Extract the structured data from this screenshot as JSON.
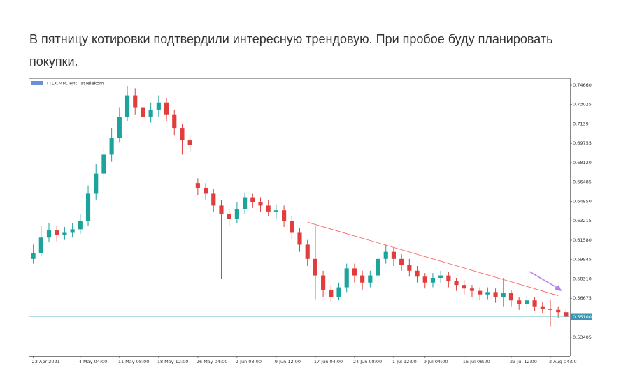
{
  "post": {
    "text": "В пятницу котировки подтвердили интересную трендовую. При пробое буду планировать покупки."
  },
  "chart_data": {
    "type": "candlestick",
    "title": "TTLK.MM, H4: TatTelekom",
    "up_color": "#1ba39c",
    "down_color": "#e23d3d",
    "open": [
      0.6,
      0.605,
      0.618,
      0.624,
      0.62,
      0.622,
      0.625,
      0.632,
      0.655,
      0.672,
      0.688,
      0.702,
      0.72,
      0.738,
      0.728,
      0.72,
      0.726,
      0.732,
      0.722,
      0.71,
      0.7,
      0.664,
      0.66,
      0.655,
      0.645,
      0.638,
      0.634,
      0.642,
      0.652,
      0.648,
      0.645,
      0.64,
      0.641,
      0.632,
      0.622,
      0.612,
      0.6,
      0.586,
      0.574,
      0.568,
      0.576,
      0.592,
      0.586,
      0.58,
      0.586,
      0.6,
      0.606,
      0.6,
      0.595,
      0.59,
      0.585,
      0.58,
      0.584,
      0.586,
      0.581,
      0.578,
      0.575,
      0.573,
      0.57,
      0.572,
      0.568,
      0.571,
      0.565,
      0.562,
      0.565,
      0.56,
      0.558,
      0.557,
      0.555
    ],
    "high": [
      0.612,
      0.628,
      0.63,
      0.628,
      0.627,
      0.63,
      0.638,
      0.662,
      0.68,
      0.695,
      0.71,
      0.728,
      0.746,
      0.744,
      0.733,
      0.732,
      0.738,
      0.736,
      0.726,
      0.714,
      0.704,
      0.668,
      0.664,
      0.659,
      0.65,
      0.642,
      0.648,
      0.656,
      0.655,
      0.652,
      0.65,
      0.646,
      0.645,
      0.636,
      0.626,
      0.616,
      0.628,
      0.59,
      0.578,
      0.58,
      0.596,
      0.596,
      0.59,
      0.59,
      0.604,
      0.612,
      0.61,
      0.604,
      0.6,
      0.594,
      0.588,
      0.588,
      0.59,
      0.589,
      0.584,
      0.582,
      0.578,
      0.576,
      0.576,
      0.575,
      0.584,
      0.574,
      0.568,
      0.569,
      0.568,
      0.564,
      0.566,
      0.56,
      0.558
    ],
    "low": [
      0.596,
      0.602,
      0.614,
      0.615,
      0.616,
      0.618,
      0.621,
      0.628,
      0.65,
      0.668,
      0.682,
      0.698,
      0.716,
      0.722,
      0.714,
      0.715,
      0.72,
      0.716,
      0.704,
      0.688,
      0.69,
      0.654,
      0.65,
      0.64,
      0.583,
      0.628,
      0.63,
      0.638,
      0.643,
      0.64,
      0.636,
      0.634,
      0.627,
      0.617,
      0.606,
      0.594,
      0.566,
      0.568,
      0.564,
      0.565,
      0.572,
      0.58,
      0.574,
      0.576,
      0.582,
      0.596,
      0.594,
      0.59,
      0.585,
      0.58,
      0.575,
      0.576,
      0.58,
      0.576,
      0.573,
      0.57,
      0.568,
      0.565,
      0.566,
      0.563,
      0.56,
      0.56,
      0.557,
      0.558,
      0.556,
      0.554,
      0.543,
      0.55,
      0.548
    ],
    "close": [
      0.605,
      0.618,
      0.624,
      0.62,
      0.622,
      0.625,
      0.632,
      0.655,
      0.672,
      0.688,
      0.702,
      0.72,
      0.738,
      0.728,
      0.72,
      0.726,
      0.732,
      0.722,
      0.71,
      0.7,
      0.696,
      0.66,
      0.655,
      0.645,
      0.638,
      0.634,
      0.642,
      0.652,
      0.648,
      0.645,
      0.64,
      0.641,
      0.632,
      0.622,
      0.612,
      0.6,
      0.586,
      0.574,
      0.568,
      0.576,
      0.592,
      0.586,
      0.58,
      0.586,
      0.6,
      0.606,
      0.6,
      0.595,
      0.59,
      0.585,
      0.58,
      0.584,
      0.586,
      0.581,
      0.578,
      0.575,
      0.573,
      0.57,
      0.572,
      0.568,
      0.571,
      0.565,
      0.562,
      0.565,
      0.56,
      0.558,
      0.557,
      0.555,
      0.551
    ],
    "xlim": [
      -0.5,
      68.5
    ],
    "xticks": [
      {
        "value": 0,
        "label": "23 Apr 2021"
      },
      {
        "value": 6,
        "label": "4 May 04:00"
      },
      {
        "value": 11,
        "label": "11 May 08:00"
      },
      {
        "value": 16,
        "label": "18 May 12:00"
      },
      {
        "value": 21,
        "label": "26 May 04:00"
      },
      {
        "value": 26,
        "label": "2 Jun 08:00"
      },
      {
        "value": 31,
        "label": "9 Jun 12:00"
      },
      {
        "value": 36,
        "label": "17 Jun 04:00"
      },
      {
        "value": 41,
        "label": "24 Jun 08:00"
      },
      {
        "value": 46,
        "label": "1 Jul 12:00"
      },
      {
        "value": 50,
        "label": "9 Jul 04:00"
      },
      {
        "value": 55,
        "label": "16 Jul 08:00"
      },
      {
        "value": 61,
        "label": "23 Jul 12:00"
      },
      {
        "value": 66,
        "label": "2 Aug 04:00"
      }
    ],
    "ylim": [
      0.518,
      0.7507
    ],
    "yticks": [
      {
        "value": 0.7466,
        "label": "0.74660"
      },
      0.73025,
      0.7139,
      {
        "value": 0.69755,
        "label": "0.69755"
      },
      {
        "value": 0.6812,
        "label": "0.68120"
      },
      0.66485,
      {
        "value": 0.6485,
        "label": "0.64850"
      },
      0.63215,
      {
        "value": 0.6158,
        "label": "0.61580"
      },
      0.59945,
      {
        "value": 0.5831,
        "label": "0.58310"
      },
      0.56675,
      0.53405
    ],
    "trendline": {
      "x": [
        35,
        67
      ],
      "y": [
        0.631,
        0.569
      ],
      "color": "#ff5a5a"
    },
    "support_line": {
      "value": 0.5515,
      "color": "#7fc6d8"
    },
    "price_label": {
      "value": 0.551,
      "label": "0.55100"
    }
  }
}
